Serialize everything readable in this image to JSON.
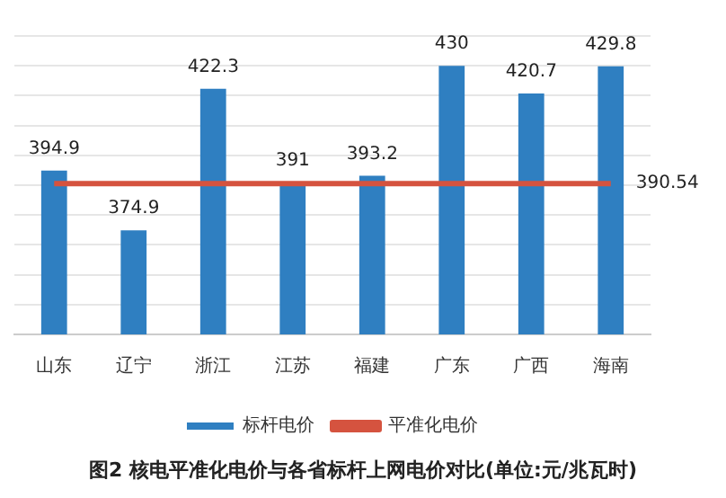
{
  "chart_data": {
    "type": "bar",
    "title": "图2  核电平准化电价与各省标杆上网电价对比(单位:元/兆瓦时)",
    "categories": [
      "山东",
      "辽宁",
      "浙江",
      "江苏",
      "福建",
      "广东",
      "广西",
      "海南"
    ],
    "series": [
      {
        "name": "标杆电价",
        "color": "#2f7fc1",
        "values": [
          394.9,
          374.9,
          422.3,
          391,
          393.2,
          430,
          420.7,
          429.8
        ],
        "value_labels": [
          "394.9",
          "374.9",
          "422.3",
          "391",
          "393.2",
          "430",
          "420.7",
          "429.8"
        ]
      },
      {
        "name": "平准化电价",
        "type": "line",
        "color": "#d5533f",
        "values": [
          390.54,
          390.54,
          390.54,
          390.54,
          390.54,
          390.54,
          390.54,
          390.54
        ],
        "value_labels": [
          null,
          null,
          null,
          null,
          null,
          null,
          null,
          "390.54"
        ]
      }
    ],
    "ylim": [
      340,
      440
    ],
    "yticks": [
      {
        "value": 340,
        "label": null
      },
      {
        "value": 350,
        "label": null
      },
      {
        "value": 360,
        "label": null
      },
      {
        "value": 370,
        "label": null
      },
      {
        "value": 380,
        "label": null
      },
      {
        "value": 390,
        "label": null
      },
      {
        "value": 400,
        "label": null
      },
      {
        "value": 410,
        "label": null
      },
      {
        "value": 420,
        "label": null
      },
      {
        "value": 430,
        "label": null
      },
      {
        "value": 440,
        "label": null
      }
    ],
    "grid": "y",
    "legend": "bottom",
    "tick_labels": "x",
    "marker": "none"
  }
}
